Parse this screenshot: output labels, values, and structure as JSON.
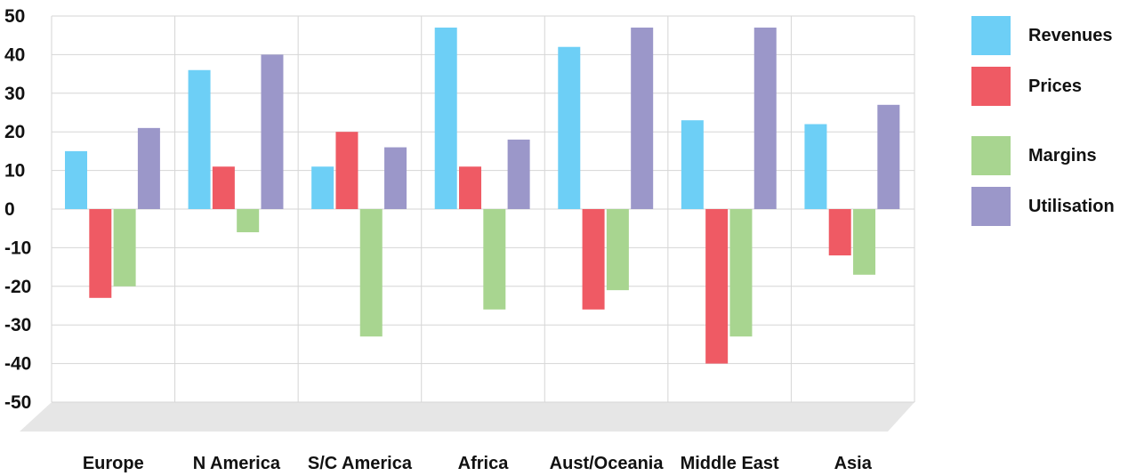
{
  "chart_data": {
    "type": "bar",
    "categories": [
      "Europe",
      "N America",
      "S/C America",
      "Africa",
      "Aust/Oceania",
      "Middle East",
      "Asia"
    ],
    "series": [
      {
        "name": "Revenues",
        "color": "#6dcff6",
        "values": [
          15,
          36,
          11,
          47,
          42,
          23,
          22
        ]
      },
      {
        "name": "Prices",
        "color": "#ef5a64",
        "values": [
          -23,
          11,
          20,
          11,
          -26,
          -40,
          -12
        ]
      },
      {
        "name": "Margins",
        "color": "#a8d590",
        "values": [
          -20,
          -6,
          -33,
          -26,
          -21,
          -33,
          -17
        ]
      },
      {
        "name": "Utilisation",
        "color": "#9b97c9",
        "values": [
          21,
          40,
          16,
          18,
          47,
          47,
          27
        ]
      }
    ],
    "yticks": [
      "50",
      "40",
      "30",
      "20",
      "10",
      "0",
      "-10",
      "-20",
      "-30",
      "-40",
      "-50"
    ],
    "ylim": [
      -50,
      50
    ],
    "grid": true,
    "legend_position": "right",
    "floor_color": "#e6e6e6",
    "grid_color": "#d6d6d6"
  }
}
